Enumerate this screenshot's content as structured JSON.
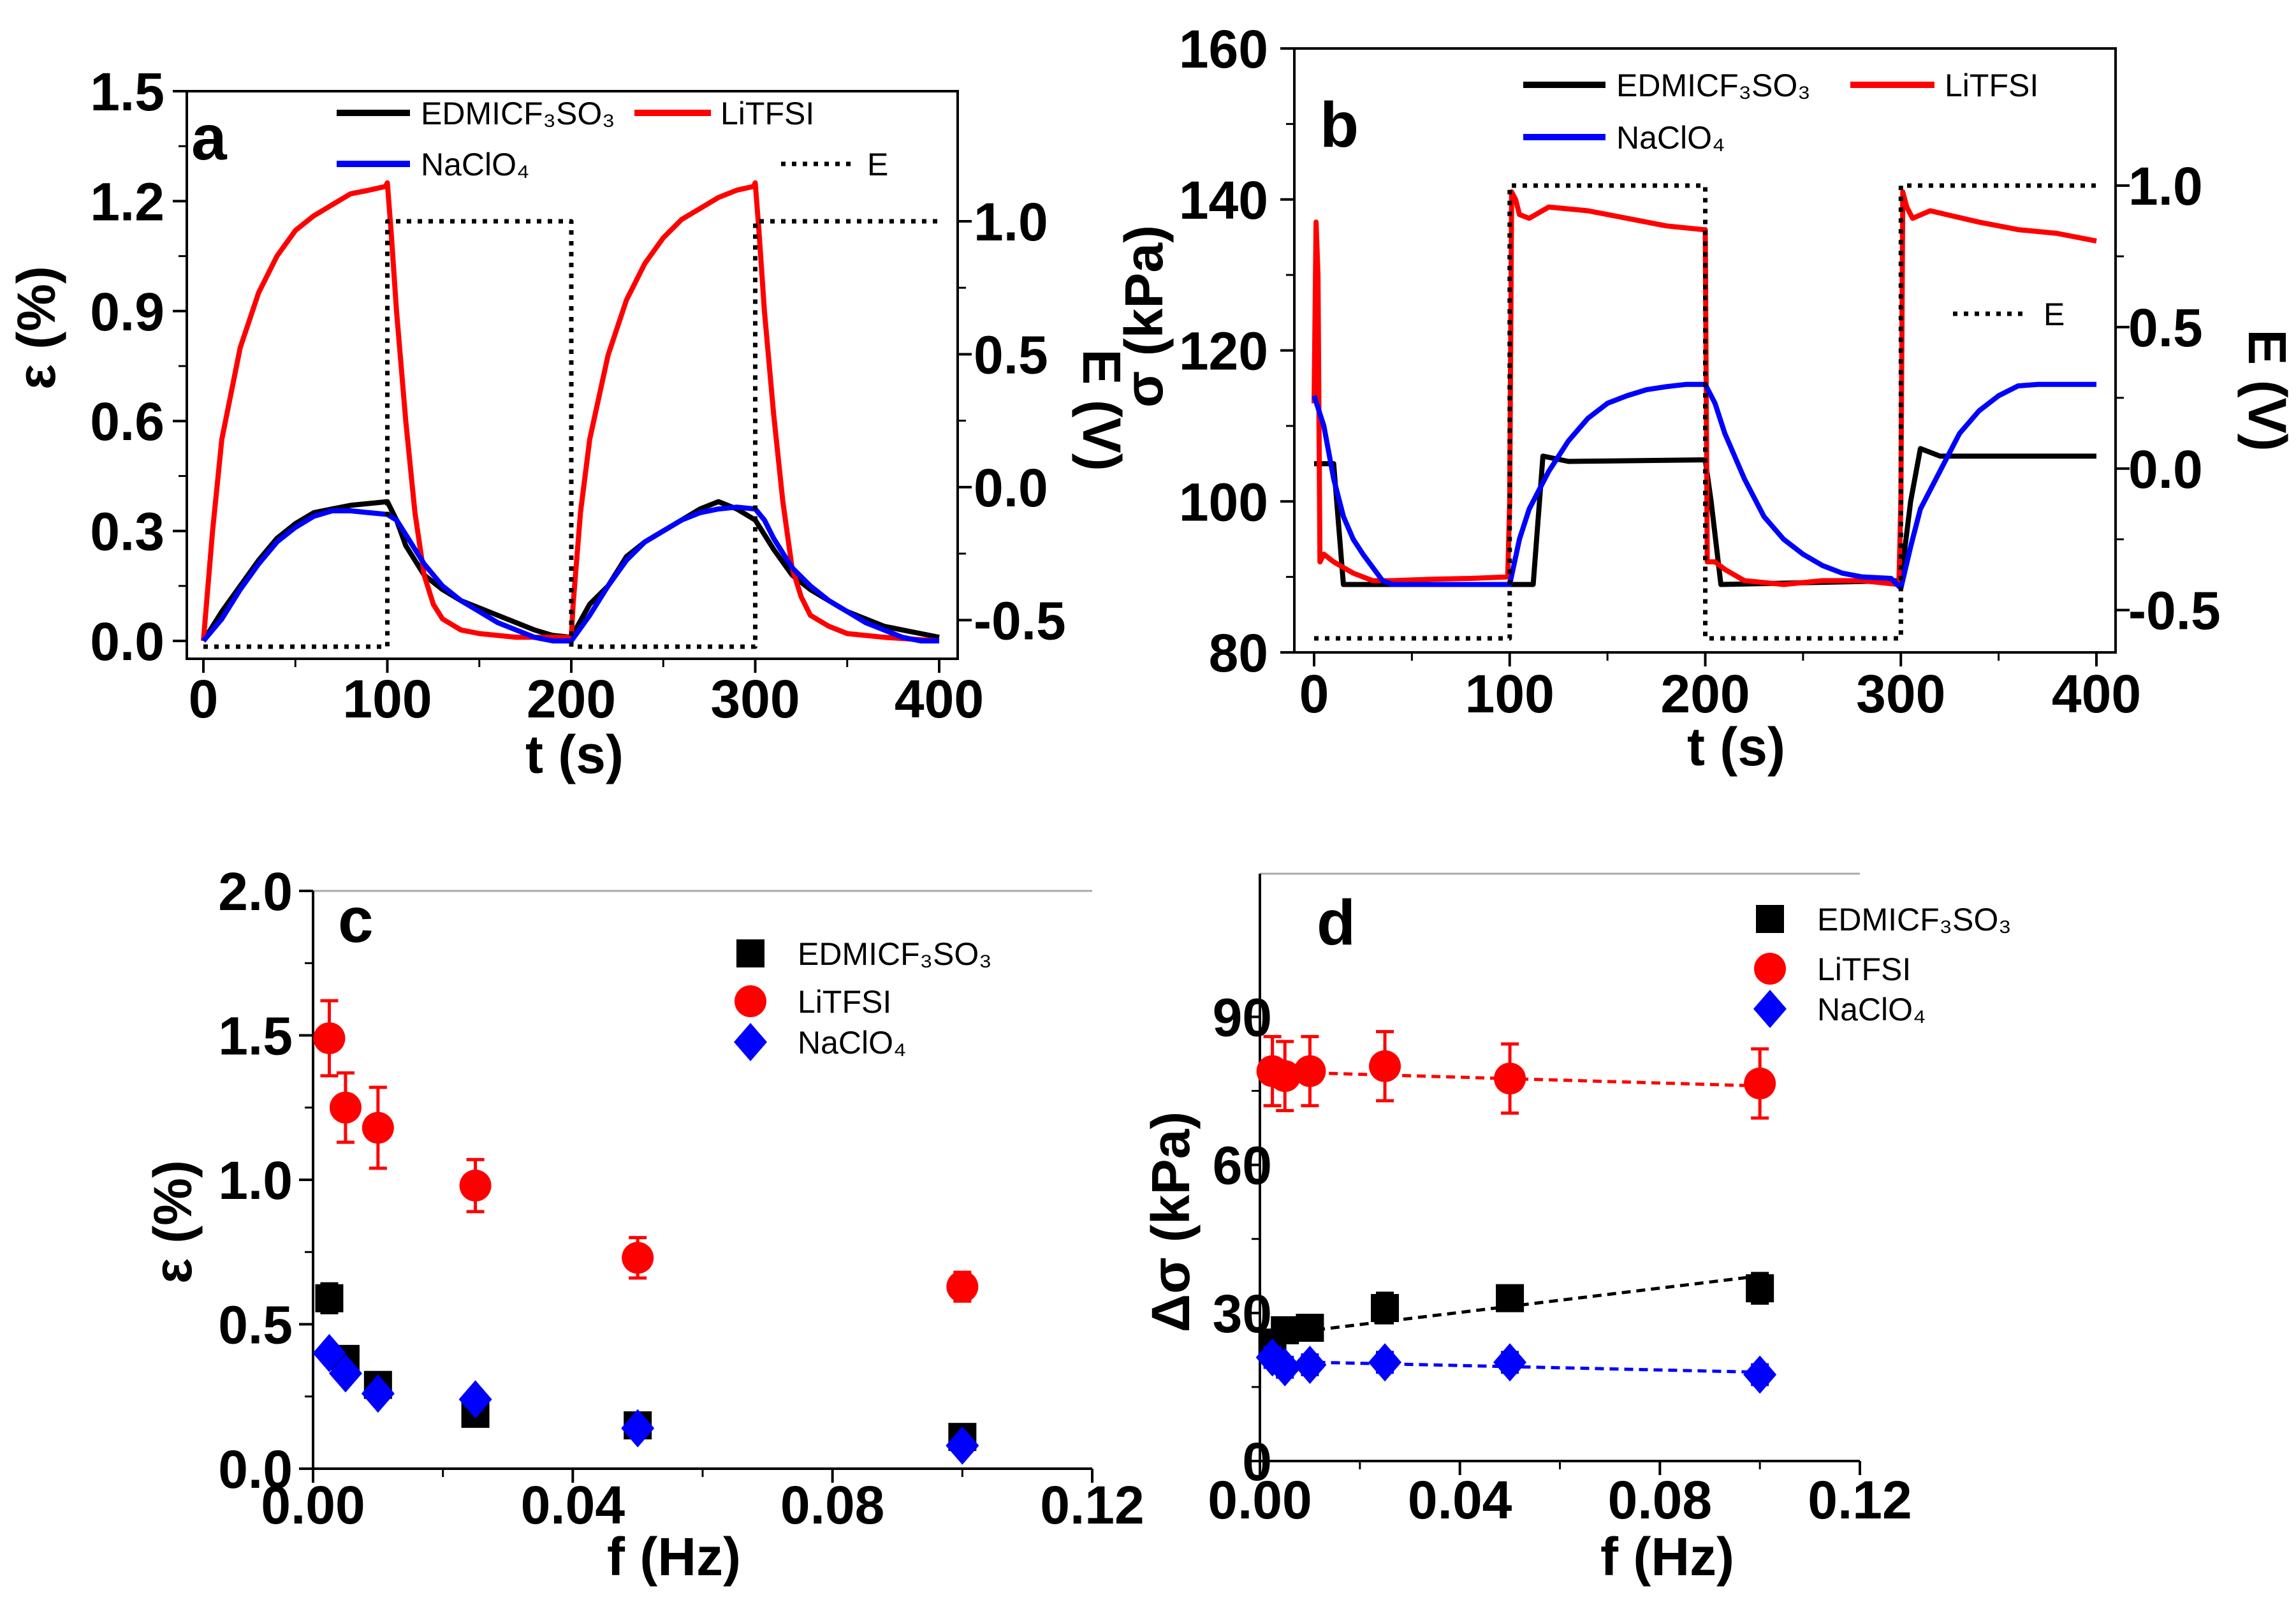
{
  "chart_data": [
    {
      "panel": "a",
      "type": "line",
      "xlabel": "t (s)",
      "ylabel": "ε (%)",
      "y2label": "E (V)",
      "xlim": [
        0,
        400
      ],
      "ylim": [
        0,
        1.5
      ],
      "y2lim": [
        -0.6,
        1.0
      ],
      "xticks": [
        0,
        100,
        200,
        300,
        400
      ],
      "yticks": [
        0.0,
        0.3,
        0.6,
        0.9,
        1.2,
        1.5
      ],
      "y2ticks": [
        -0.5,
        0.0,
        0.5,
        1.0
      ],
      "xticklabels": [
        "0",
        "100",
        "200",
        "300",
        "400"
      ],
      "yticklabels": [
        "0.0",
        "0.3",
        "0.6",
        "0.9",
        "1.2",
        "1.5"
      ],
      "y2ticklabels": [
        "-0.5",
        "0.0",
        "0.5",
        "1.0"
      ],
      "legend_placement": "top",
      "series": [
        {
          "name": "EDMICF₃SO₃",
          "color": "#000000",
          "axis": "y",
          "x": [
            0,
            10,
            20,
            30,
            40,
            50,
            60,
            70,
            80,
            90,
            100,
            105,
            110,
            120,
            130,
            140,
            150,
            160,
            170,
            180,
            190,
            200,
            210,
            220,
            230,
            240,
            250,
            260,
            270,
            280,
            290,
            300,
            310,
            320,
            330,
            340,
            350,
            360,
            370,
            380,
            390,
            400
          ],
          "y": [
            0,
            0.08,
            0.15,
            0.22,
            0.28,
            0.32,
            0.35,
            0.36,
            0.37,
            0.375,
            0.38,
            0.33,
            0.26,
            0.18,
            0.14,
            0.11,
            0.09,
            0.07,
            0.05,
            0.03,
            0.015,
            0.01,
            0.1,
            0.15,
            0.23,
            0.27,
            0.3,
            0.33,
            0.36,
            0.38,
            0.36,
            0.33,
            0.25,
            0.18,
            0.14,
            0.11,
            0.08,
            0.06,
            0.04,
            0.03,
            0.02,
            0.01
          ]
        },
        {
          "name": "LiTFSI",
          "color": "#ff0000",
          "axis": "y",
          "x": [
            0,
            5,
            10,
            20,
            30,
            40,
            50,
            60,
            70,
            80,
            90,
            99,
            100,
            102,
            105,
            110,
            115,
            120,
            125,
            130,
            140,
            150,
            170,
            199,
            200,
            201,
            205,
            210,
            220,
            230,
            240,
            250,
            260,
            270,
            280,
            290,
            299,
            300,
            302,
            305,
            310,
            315,
            320,
            325,
            330,
            340,
            350,
            370,
            400
          ],
          "y": [
            0,
            0.3,
            0.55,
            0.8,
            0.95,
            1.05,
            1.12,
            1.16,
            1.19,
            1.22,
            1.23,
            1.24,
            1.25,
            1.12,
            0.9,
            0.6,
            0.35,
            0.18,
            0.1,
            0.06,
            0.03,
            0.02,
            0.01,
            0.01,
            0.01,
            0.1,
            0.35,
            0.55,
            0.78,
            0.93,
            1.03,
            1.1,
            1.15,
            1.18,
            1.21,
            1.23,
            1.24,
            1.25,
            1.12,
            0.9,
            0.62,
            0.38,
            0.2,
            0.12,
            0.07,
            0.04,
            0.02,
            0.01,
            0.0
          ]
        },
        {
          "name": "NaClO₄",
          "color": "#0000ff",
          "axis": "y",
          "x": [
            0,
            10,
            20,
            30,
            40,
            50,
            60,
            70,
            80,
            90,
            100,
            105,
            110,
            120,
            130,
            140,
            150,
            160,
            170,
            180,
            190,
            200,
            210,
            220,
            230,
            240,
            250,
            260,
            270,
            280,
            290,
            300,
            305,
            310,
            320,
            330,
            340,
            350,
            360,
            370,
            380,
            390,
            400
          ],
          "y": [
            0,
            0.06,
            0.14,
            0.21,
            0.27,
            0.31,
            0.34,
            0.355,
            0.355,
            0.35,
            0.345,
            0.33,
            0.29,
            0.21,
            0.15,
            0.11,
            0.08,
            0.05,
            0.03,
            0.01,
            0,
            0,
            0.07,
            0.15,
            0.22,
            0.27,
            0.3,
            0.33,
            0.35,
            0.36,
            0.365,
            0.36,
            0.33,
            0.28,
            0.2,
            0.15,
            0.11,
            0.08,
            0.05,
            0.03,
            0.01,
            0,
            0
          ]
        },
        {
          "name": "E",
          "color": "#000000",
          "axis": "y2",
          "dotted": true,
          "x": [
            0,
            100,
            100,
            200,
            200,
            300,
            300,
            400
          ],
          "y": [
            -0.6,
            -0.6,
            1.0,
            1.0,
            -0.6,
            -0.6,
            1.0,
            1.0
          ]
        }
      ]
    },
    {
      "panel": "b",
      "type": "line",
      "xlabel": "t (s)",
      "ylabel": "σ (kPa)",
      "y2label": "E (V)",
      "xlim": [
        0,
        400
      ],
      "ylim": [
        80,
        160
      ],
      "y2lim": [
        -0.6,
        1.0
      ],
      "xticks": [
        0,
        100,
        200,
        300,
        400
      ],
      "yticks": [
        80,
        100,
        120,
        140,
        160
      ],
      "y2ticks": [
        -0.5,
        0.0,
        0.5,
        1.0
      ],
      "xticklabels": [
        "0",
        "100",
        "200",
        "300",
        "400"
      ],
      "yticklabels": [
        "80",
        "100",
        "120",
        "140",
        "160"
      ],
      "y2ticklabels": [
        "-0.5",
        "0.0",
        "0.5",
        "1.0"
      ],
      "legend_placement": "top",
      "series": [
        {
          "name": "EDMICF₃SO₃",
          "color": "#000000",
          "axis": "y",
          "x": [
            0,
            10,
            15,
            20,
            100,
            105,
            112,
            117,
            130,
            200,
            203,
            208,
            300,
            305,
            310,
            320,
            400
          ],
          "y": [
            105,
            105,
            89,
            89,
            89,
            89,
            89,
            106,
            105.3,
            105.5,
            100,
            89,
            89.5,
            100,
            107,
            106,
            106
          ]
        },
        {
          "name": "LiTFSI",
          "color": "#ff0000",
          "axis": "y",
          "x": [
            0,
            1,
            2,
            3,
            5,
            10,
            20,
            30,
            40,
            60,
            80,
            99,
            100,
            101,
            103,
            105,
            110,
            120,
            140,
            160,
            180,
            199,
            200,
            201,
            205,
            210,
            220,
            240,
            260,
            280,
            299,
            300,
            301,
            303,
            306,
            315,
            340,
            360,
            380,
            400
          ],
          "y": [
            113,
            137,
            130,
            92,
            93,
            92,
            90.5,
            89.5,
            89.5,
            89.7,
            89.8,
            90,
            100,
            141,
            140,
            138,
            137.5,
            139,
            138.5,
            137.5,
            136.5,
            136,
            136,
            92,
            92,
            91,
            89.5,
            89,
            89.5,
            89.5,
            89,
            100,
            141,
            139,
            137.5,
            138.5,
            137,
            136,
            135.5,
            134.5
          ]
        },
        {
          "name": "NaClO₄",
          "color": "#0000ff",
          "axis": "y",
          "x": [
            0,
            5,
            10,
            15,
            20,
            25,
            35,
            40,
            100,
            105,
            110,
            120,
            130,
            140,
            150,
            160,
            170,
            180,
            190,
            200,
            205,
            210,
            220,
            230,
            240,
            250,
            260,
            270,
            280,
            295,
            300,
            305,
            310,
            320,
            330,
            340,
            350,
            360,
            370,
            400
          ],
          "y": [
            114,
            110,
            103,
            98,
            95,
            93,
            89.5,
            89,
            89,
            95,
            99,
            104,
            108,
            111,
            113,
            114,
            114.8,
            115.2,
            115.5,
            115.5,
            113,
            109,
            103,
            98,
            95,
            93,
            91.5,
            90.5,
            90,
            89.8,
            88.5,
            94,
            99,
            104,
            109,
            112,
            114,
            115.3,
            115.5,
            115.5
          ]
        },
        {
          "name": "E",
          "color": "#000000",
          "axis": "y2",
          "dotted": true,
          "x": [
            0,
            100,
            100,
            200,
            200,
            300,
            300,
            400
          ],
          "y": [
            -0.6,
            -0.6,
            1.0,
            1.0,
            -0.6,
            -0.6,
            1.0,
            1.0
          ]
        }
      ]
    },
    {
      "panel": "c",
      "type": "scatter",
      "xlabel": "f (Hz)",
      "ylabel": "ε (%)",
      "xlim": [
        0,
        0.12
      ],
      "ylim": [
        0,
        2.0
      ],
      "xticks": [
        0,
        0.04,
        0.08,
        0.12
      ],
      "yticks": [
        0,
        0.5,
        1.0,
        1.5,
        2.0
      ],
      "xticklabels": [
        "0.00",
        "0.04",
        "0.08",
        "0.12"
      ],
      "yticklabels": [
        "0.0",
        "0.5",
        "1.0",
        "1.5",
        "2.0"
      ],
      "legend_placement": "top-right",
      "series": [
        {
          "name": "EDMICF₃SO₃",
          "color": "#000000",
          "marker": "square",
          "x": [
            0.0025,
            0.005,
            0.01,
            0.025,
            0.05,
            0.1
          ],
          "y": [
            0.59,
            0.38,
            0.29,
            0.19,
            0.15,
            0.11
          ],
          "err": [
            0.05,
            0.03,
            0.03,
            0.03,
            0.03,
            0.03
          ]
        },
        {
          "name": "LiTFSI",
          "color": "#ff0000",
          "marker": "circle",
          "x": [
            0.0025,
            0.005,
            0.01,
            0.025,
            0.05,
            0.1
          ],
          "y": [
            1.49,
            1.25,
            1.18,
            0.98,
            0.73,
            0.63
          ],
          "err": [
            0.13,
            0.12,
            0.14,
            0.09,
            0.07,
            0.05
          ]
        },
        {
          "name": "NaClO₄",
          "color": "#0000ff",
          "marker": "diamond",
          "x": [
            0.0025,
            0.005,
            0.01,
            0.025,
            0.05,
            0.1
          ],
          "y": [
            0.4,
            0.33,
            0.26,
            0.24,
            0.14,
            0.08
          ],
          "err": [
            0.02,
            0.02,
            0.02,
            0.02,
            0.02,
            0.02
          ]
        }
      ]
    },
    {
      "panel": "d",
      "type": "scatter",
      "xlabel": "f (Hz)",
      "ylabel": "Δσ (kPa)",
      "xlim": [
        0,
        0.12
      ],
      "ylim": [
        0,
        119
      ],
      "xticks": [
        0,
        0.04,
        0.08,
        0.12
      ],
      "yticks": [
        0,
        30,
        60,
        90
      ],
      "xticklabels": [
        "0.00",
        "0.04",
        "0.08",
        "0.12"
      ],
      "yticklabels": [
        "0",
        "30",
        "60",
        "90"
      ],
      "legend_placement": "top-right",
      "series": [
        {
          "name": "EDMICF₃SO₃",
          "color": "#000000",
          "marker": "square",
          "x": [
            0.0025,
            0.005,
            0.01,
            0.025,
            0.05,
            0.1
          ],
          "y": [
            24,
            26.5,
            27,
            31,
            33,
            35
          ],
          "err": [
            2,
            2,
            2,
            3,
            2,
            3
          ],
          "fit": {
            "x": [
              0.0025,
              0.1
            ],
            "y": [
              25.5,
              37.5
            ]
          }
        },
        {
          "name": "LiTFSI",
          "color": "#ff0000",
          "marker": "circle",
          "x": [
            0.0025,
            0.005,
            0.01,
            0.025,
            0.05,
            0.1
          ],
          "y": [
            79,
            78,
            79,
            80,
            77.5,
            76.5
          ],
          "err": [
            7,
            7,
            7,
            7,
            7,
            7
          ],
          "fit": {
            "x": [
              0.005,
              0.1
            ],
            "y": [
              78.8,
              76
            ]
          }
        },
        {
          "name": "NaClO₄",
          "color": "#0000ff",
          "marker": "diamond",
          "x": [
            0.0025,
            0.005,
            0.01,
            0.025,
            0.05,
            0.1
          ],
          "y": [
            21,
            19,
            19.5,
            20,
            20,
            17.5
          ],
          "err": [
            2,
            2,
            2,
            2,
            2,
            2
          ],
          "fit": {
            "x": [
              0.0025,
              0.1
            ],
            "y": [
              20.2,
              18
            ]
          }
        }
      ]
    }
  ]
}
